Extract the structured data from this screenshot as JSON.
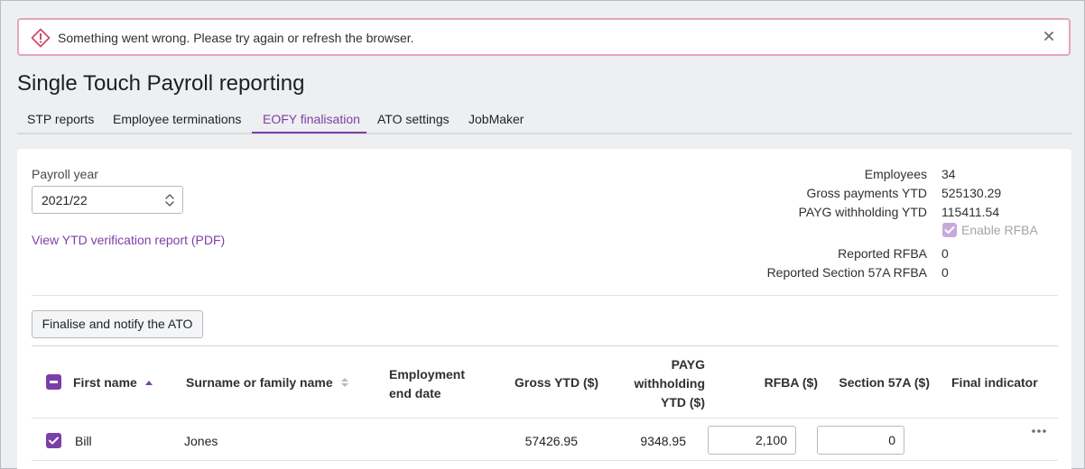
{
  "alert": {
    "message": "Something went wrong. Please try again or refresh the browser.",
    "close_icon": "close-icon",
    "warn_icon": "warning-icon"
  },
  "page": {
    "title": "Single Touch Payroll reporting"
  },
  "tabs": [
    {
      "label": "STP reports",
      "active": false
    },
    {
      "label": "Employee terminations",
      "active": false
    },
    {
      "label": "EOFY finalisation",
      "active": true
    },
    {
      "label": "ATO settings",
      "active": false
    },
    {
      "label": "JobMaker",
      "active": false
    }
  ],
  "filters": {
    "payroll_year_label": "Payroll year",
    "payroll_year_value": "2021/22",
    "verification_link": "View YTD verification report (PDF)"
  },
  "summary": {
    "employees_label": "Employees",
    "employees_value": "34",
    "gross_label": "Gross payments YTD",
    "gross_value": "525130.29",
    "payg_label": "PAYG withholding YTD",
    "payg_value": "115411.54",
    "enable_rfba_label": "Enable RFBA",
    "enable_rfba_checked": true,
    "reported_rfba_label": "Reported RFBA",
    "reported_rfba_value": "0",
    "reported_57a_label": "Reported Section 57A RFBA",
    "reported_57a_value": "0"
  },
  "actions": {
    "finalise_label": "Finalise and notify the ATO"
  },
  "table": {
    "headers": {
      "first_name": "First name",
      "surname": "Surname or family name",
      "employment_end_1": "Employment",
      "employment_end_2": "end date",
      "gross_ytd": "Gross YTD ($)",
      "payg_1": "PAYG",
      "payg_2": "withholding",
      "payg_3": "YTD ($)",
      "rfba": "RFBA ($)",
      "section57a": "Section 57A ($)",
      "final_indicator": "Final indicator"
    },
    "rows": [
      {
        "first_name": "Bill",
        "surname": "Jones",
        "employment_end": "",
        "gross_ytd": "57426.95",
        "payg_ytd": "9348.95",
        "rfba": "2,100",
        "section57a": "0",
        "checked": true
      }
    ]
  },
  "colors": {
    "accent": "#7b3fa8",
    "alert_border": "#e4a4bf",
    "alert_icon": "#d2476f"
  }
}
